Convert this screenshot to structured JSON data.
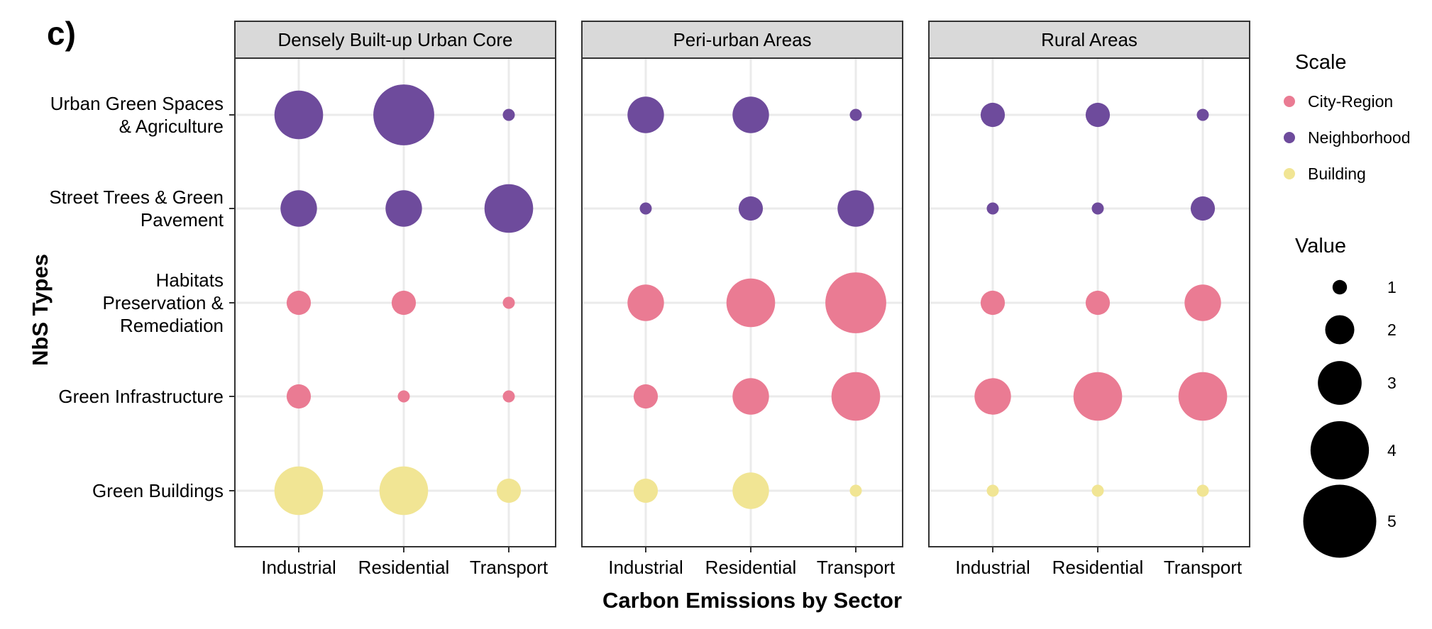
{
  "panel_tag": "c)",
  "colors": {
    "City-Region": "#ea7b93",
    "Neighborhood": "#6e4b9c",
    "Building": "#f1e594"
  },
  "chart_data": {
    "type": "scatter",
    "subtype": "bubble facet grid",
    "xlabel": "Carbon Emissions by Sector",
    "ylabel": "NbS Types",
    "panels": [
      "Densely Built-up Urban Core",
      "Peri-urban Areas",
      "Rural Areas"
    ],
    "sectors": [
      "Industrial",
      "Residential",
      "Transport"
    ],
    "rows": [
      {
        "label": [
          "Urban Green Spaces",
          "& Agriculture"
        ],
        "scale": "Neighborhood"
      },
      {
        "label": [
          "Street Trees & Green",
          "Pavement"
        ],
        "scale": "Neighborhood"
      },
      {
        "label": [
          "Habitats",
          "Preservation &",
          "Remediation"
        ],
        "scale": "City-Region"
      },
      {
        "label": [
          "Green Infrastructure"
        ],
        "scale": "City-Region"
      },
      {
        "label": [
          "Green Buildings"
        ],
        "scale": "Building"
      }
    ],
    "values": [
      [
        [
          4,
          5,
          1
        ],
        [
          3,
          3,
          1
        ],
        [
          2,
          2,
          1
        ]
      ],
      [
        [
          3,
          3,
          4
        ],
        [
          1,
          2,
          3
        ],
        [
          1,
          1,
          2
        ]
      ],
      [
        [
          2,
          2,
          1
        ],
        [
          3,
          4,
          5
        ],
        [
          2,
          2,
          3
        ]
      ],
      [
        [
          2,
          1,
          1
        ],
        [
          2,
          3,
          4
        ],
        [
          3,
          4,
          4
        ]
      ],
      [
        [
          4,
          4,
          2
        ],
        [
          2,
          3,
          1
        ],
        [
          1,
          1,
          1
        ]
      ]
    ],
    "grid": true,
    "legend": {
      "position": "right",
      "scale_title": "Scale",
      "scale_entries": [
        "City-Region",
        "Neighborhood",
        "Building"
      ],
      "value_title": "Value",
      "value_entries": [
        1,
        2,
        3,
        4,
        5
      ]
    }
  }
}
